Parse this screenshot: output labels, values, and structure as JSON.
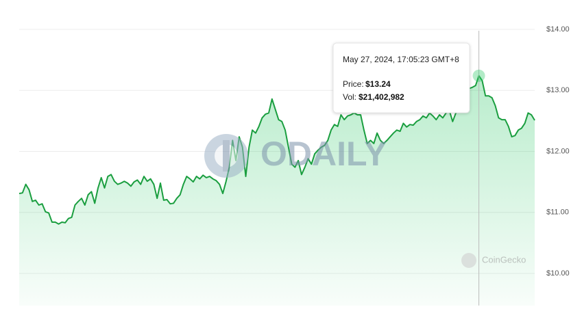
{
  "chart_data": {
    "type": "area",
    "color": "#1a9e3f",
    "ylim": [
      9.5,
      14.5
    ],
    "yticks": [
      {
        "value": 14,
        "label": "$14.00"
      },
      {
        "value": 13,
        "label": "$13.00"
      },
      {
        "value": 12,
        "label": "$12.00"
      },
      {
        "value": 11,
        "label": "$11.00"
      },
      {
        "value": 10,
        "label": "$10.00"
      }
    ],
    "grid": true,
    "values": [
      11.31,
      11.32,
      11.46,
      11.37,
      11.18,
      11.2,
      11.12,
      11.14,
      11.01,
      10.99,
      10.84,
      10.84,
      10.81,
      10.84,
      10.83,
      10.9,
      10.92,
      11.12,
      11.18,
      11.23,
      11.12,
      11.29,
      11.34,
      11.15,
      11.4,
      11.57,
      11.4,
      11.59,
      11.62,
      11.51,
      11.46,
      11.48,
      11.51,
      11.48,
      11.43,
      11.5,
      11.53,
      11.46,
      11.59,
      11.51,
      11.55,
      11.46,
      11.23,
      11.48,
      11.2,
      11.21,
      11.14,
      11.15,
      11.23,
      11.29,
      11.46,
      11.59,
      11.55,
      11.5,
      11.59,
      11.55,
      11.61,
      11.57,
      11.59,
      11.55,
      11.52,
      11.46,
      11.31,
      11.51,
      11.74,
      12.18,
      11.85,
      12.24,
      12.07,
      11.59,
      12.07,
      12.35,
      12.3,
      12.41,
      12.55,
      12.61,
      12.63,
      12.86,
      12.69,
      12.52,
      12.49,
      12.35,
      12.07,
      11.79,
      11.74,
      11.85,
      11.62,
      11.74,
      11.88,
      11.79,
      11.96,
      12.02,
      12.07,
      12.1,
      12.18,
      12.35,
      12.44,
      12.41,
      12.6,
      12.52,
      12.58,
      12.6,
      12.63,
      12.6,
      12.6,
      12.35,
      12.13,
      12.18,
      12.13,
      12.3,
      12.18,
      12.13,
      12.18,
      12.24,
      12.3,
      12.35,
      12.33,
      12.46,
      12.4,
      12.44,
      12.43,
      12.49,
      12.52,
      12.58,
      12.55,
      12.63,
      12.58,
      12.52,
      12.6,
      12.55,
      12.63,
      12.67,
      12.49,
      12.63,
      12.8,
      12.86,
      12.97,
      13.03,
      13.05,
      13.08,
      13.24,
      13.16,
      12.91,
      12.91,
      12.88,
      12.75,
      12.55,
      12.52,
      12.52,
      12.41,
      12.24,
      12.26,
      12.35,
      12.38,
      12.46,
      12.63,
      12.6,
      12.51
    ],
    "tooltip": {
      "date": "May 27, 2024, 17:05:23 GMT+8",
      "price_label": "Price:",
      "price": {
        "value": 13.24,
        "label": "$13.24"
      },
      "vol_label": "Vol:",
      "vol": "$21,402,982"
    },
    "watermarks": [
      "ODAILY",
      "CoinGecko"
    ]
  }
}
